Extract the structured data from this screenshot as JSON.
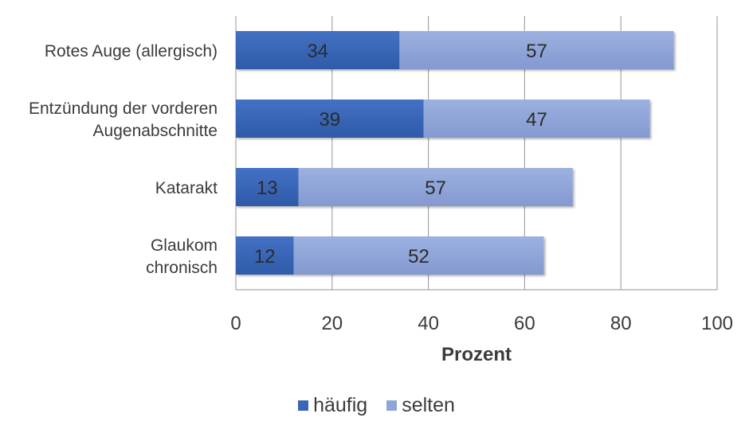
{
  "chart_data": {
    "type": "bar",
    "orientation": "horizontal",
    "stacked": true,
    "categories": [
      [
        "Rotes Auge (allergisch)"
      ],
      [
        "Entzündung der vorderen",
        "Augenabschnitte"
      ],
      [
        "Katarakt"
      ],
      [
        "Glaukom",
        "chronisch"
      ]
    ],
    "series": [
      {
        "name": "häufig",
        "values": [
          34,
          39,
          13,
          12
        ],
        "color": "#3a66b8"
      },
      {
        "name": "selten",
        "values": [
          57,
          47,
          57,
          52
        ],
        "color": "#8fa5d8"
      }
    ],
    "xlabel": "Prozent",
    "ylabel": "",
    "xlim": [
      0,
      100
    ],
    "xticks": [
      0,
      20,
      40,
      60,
      80,
      100
    ],
    "grid": true,
    "legend_position": "bottom",
    "data_labels": true
  }
}
